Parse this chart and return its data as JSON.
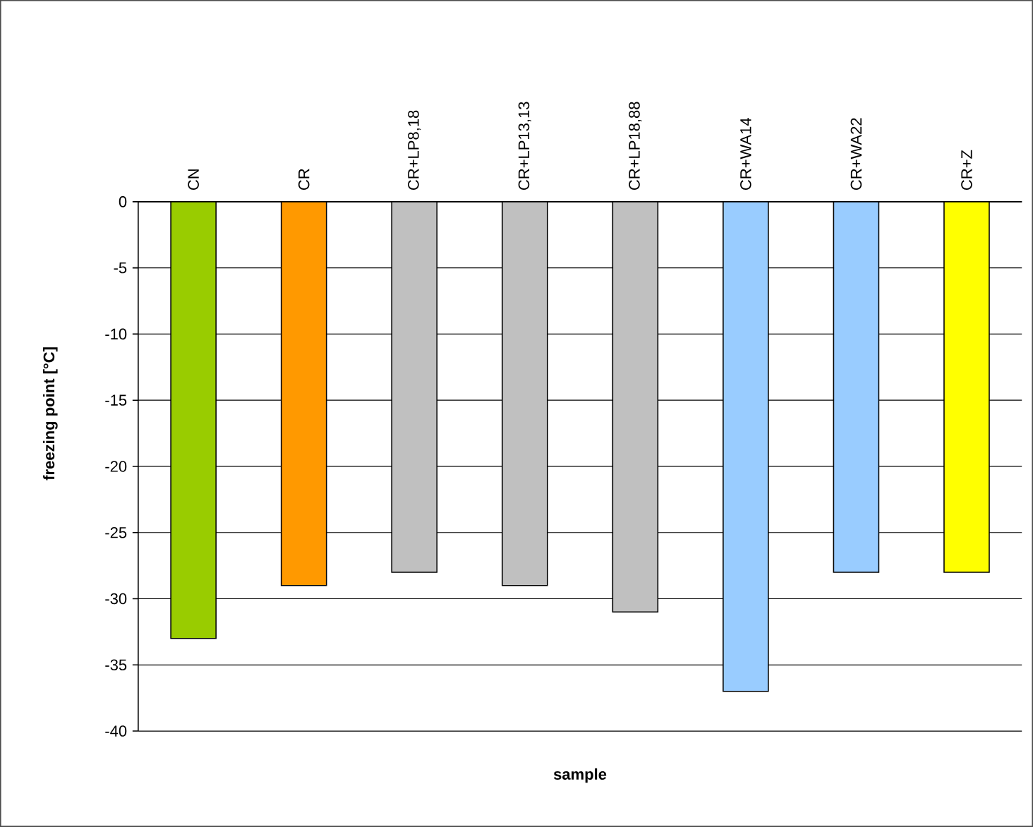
{
  "chart_data": {
    "type": "bar",
    "xlabel": "sample",
    "ylabel": "freezing point [°C]",
    "categories": [
      "CN",
      "CR",
      "CR+LP8,18",
      "CR+LP13,13",
      "CR+LP18,88",
      "CR+WA14",
      "CR+WA22",
      "CR+Z"
    ],
    "values": [
      -33,
      -29,
      -28,
      -29,
      -31,
      -37,
      -28,
      -28
    ],
    "colors": [
      "#99cc00",
      "#ff9900",
      "#c0c0c0",
      "#c0c0c0",
      "#c0c0c0",
      "#99ccff",
      "#99ccff",
      "#ffff00"
    ],
    "ylim": [
      -40,
      0
    ],
    "yticks": [
      0,
      -5,
      -10,
      -15,
      -20,
      -25,
      -30,
      -35,
      -40
    ],
    "grid": "y"
  }
}
